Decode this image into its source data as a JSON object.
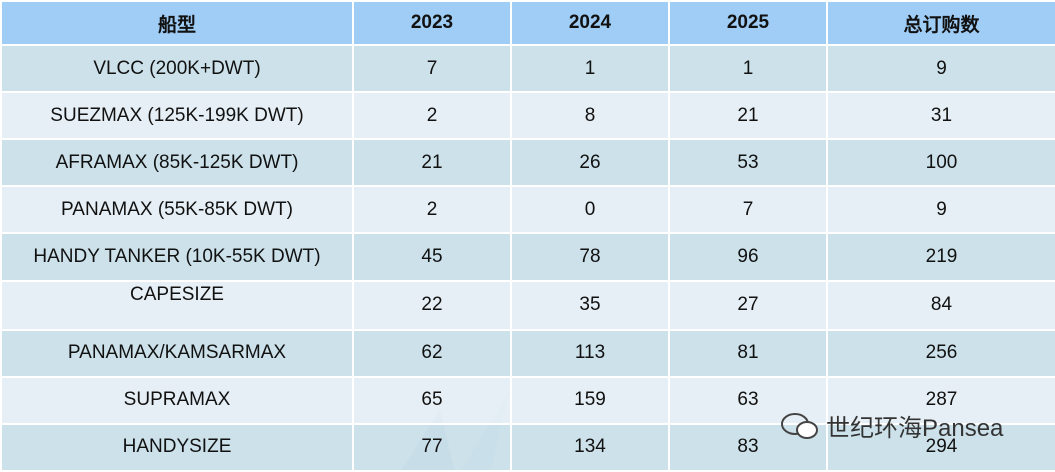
{
  "table": {
    "header": [
      "船型",
      "2023",
      "2024",
      "2025",
      "总订购数"
    ],
    "rows": [
      [
        "VLCC (200K+DWT)",
        7,
        1,
        1,
        9
      ],
      [
        "SUEZMAX (125K-199K DWT)",
        2,
        8,
        21,
        31
      ],
      [
        "AFRAMAX (85K-125K DWT)",
        21,
        26,
        53,
        100
      ],
      [
        "PANAMAX (55K-85K DWT)",
        2,
        0,
        7,
        9
      ],
      [
        "HANDY TANKER (10K-55K DWT)",
        45,
        78,
        96,
        219
      ],
      [
        "CAPESIZE",
        22,
        35,
        27,
        84
      ],
      [
        "PANAMAX/KAMSARMAX",
        62,
        113,
        81,
        256
      ],
      [
        "SUPRAMAX",
        65,
        159,
        63,
        287
      ],
      [
        "HANDYSIZE",
        77,
        134,
        83,
        294
      ]
    ]
  },
  "watermark": "世纪环海Pansea"
}
